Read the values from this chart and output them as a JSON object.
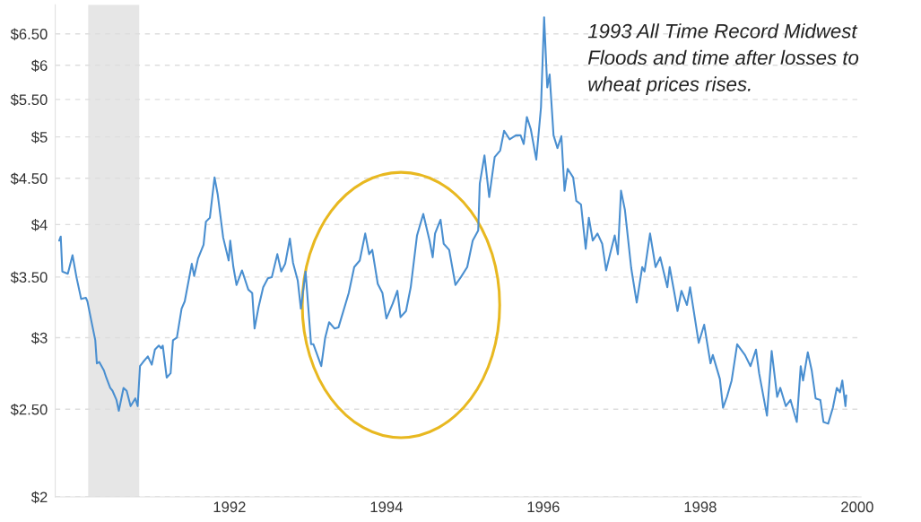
{
  "chart_data": {
    "type": "line",
    "x": [
      1989.83,
      1989.85,
      1989.87,
      1989.94,
      1990.0,
      1990.05,
      1990.11,
      1990.17,
      1990.19,
      1990.24,
      1990.29,
      1990.31,
      1990.34,
      1990.4,
      1990.43,
      1990.48,
      1990.51,
      1990.56,
      1990.59,
      1990.65,
      1990.69,
      1990.74,
      1990.8,
      1990.83,
      1990.86,
      1990.9,
      1990.96,
      1991.01,
      1991.05,
      1991.1,
      1991.13,
      1991.15,
      1991.2,
      1991.25,
      1991.28,
      1991.33,
      1991.39,
      1991.43,
      1991.52,
      1991.55,
      1991.6,
      1991.67,
      1991.7,
      1991.75,
      1991.81,
      1991.85,
      1991.92,
      1991.99,
      1992.01,
      1992.05,
      1992.09,
      1992.16,
      1992.24,
      1992.29,
      1992.32,
      1992.37,
      1992.43,
      1992.49,
      1992.54,
      1992.61,
      1992.66,
      1992.71,
      1992.77,
      1992.81,
      1992.87,
      1992.91,
      1992.97,
      1993.04,
      1993.07,
      1993.17,
      1993.22,
      1993.27,
      1993.34,
      1993.39,
      1993.52,
      1993.59,
      1993.66,
      1993.73,
      1993.78,
      1993.82,
      1993.89,
      1993.95,
      1994.0,
      1994.08,
      1994.14,
      1994.18,
      1994.25,
      1994.31,
      1994.39,
      1994.47,
      1994.55,
      1994.59,
      1994.62,
      1994.69,
      1994.73,
      1994.8,
      1994.88,
      1994.95,
      1995.03,
      1995.1,
      1995.17,
      1995.19,
      1995.25,
      1995.31,
      1995.38,
      1995.45,
      1995.5,
      1995.57,
      1995.65,
      1995.71,
      1995.75,
      1995.79,
      1995.84,
      1995.91,
      1995.97,
      1996.01,
      1996.05,
      1996.08,
      1996.13,
      1996.18,
      1996.23,
      1996.27,
      1996.31,
      1996.38,
      1996.42,
      1996.48,
      1996.54,
      1996.58,
      1996.63,
      1996.69,
      1996.75,
      1996.8,
      1996.85,
      1996.91,
      1996.95,
      1996.99,
      1997.04,
      1997.12,
      1997.19,
      1997.26,
      1997.29,
      1997.36,
      1997.43,
      1997.49,
      1997.58,
      1997.61,
      1997.67,
      1997.71,
      1997.76,
      1997.83,
      1997.87,
      1997.98,
      1998.05,
      1998.13,
      1998.16,
      1998.25,
      1998.29,
      1998.34,
      1998.4,
      1998.47,
      1998.57,
      1998.64,
      1998.71,
      1998.75,
      1998.85,
      1998.91,
      1998.98,
      1999.02,
      1999.09,
      1999.15,
      1999.23,
      1999.28,
      1999.31,
      1999.37,
      1999.42,
      1999.47,
      1999.53,
      1999.57,
      1999.63,
      1999.69,
      1999.74,
      1999.78,
      1999.81,
      1999.85,
      1999.86
    ],
    "series": [
      {
        "color": "#4a8fd0",
        "values": [
          3.84,
          3.88,
          3.55,
          3.53,
          3.7,
          3.5,
          3.31,
          3.32,
          3.29,
          3.13,
          2.98,
          2.81,
          2.82,
          2.76,
          2.71,
          2.64,
          2.62,
          2.56,
          2.49,
          2.64,
          2.62,
          2.52,
          2.57,
          2.52,
          2.79,
          2.82,
          2.86,
          2.8,
          2.91,
          2.94,
          2.92,
          2.94,
          2.71,
          2.74,
          2.98,
          3.0,
          3.23,
          3.29,
          3.62,
          3.51,
          3.67,
          3.8,
          4.03,
          4.07,
          4.51,
          4.32,
          3.87,
          3.65,
          3.84,
          3.59,
          3.43,
          3.56,
          3.39,
          3.36,
          3.07,
          3.24,
          3.41,
          3.49,
          3.5,
          3.71,
          3.55,
          3.62,
          3.86,
          3.63,
          3.47,
          3.23,
          3.55,
          2.95,
          2.95,
          2.79,
          3.0,
          3.12,
          3.07,
          3.08,
          3.36,
          3.59,
          3.65,
          3.91,
          3.71,
          3.75,
          3.44,
          3.36,
          3.15,
          3.27,
          3.38,
          3.16,
          3.21,
          3.41,
          3.89,
          4.11,
          3.84,
          3.68,
          3.91,
          4.05,
          3.81,
          3.75,
          3.43,
          3.5,
          3.59,
          3.84,
          3.94,
          4.44,
          4.77,
          4.29,
          4.75,
          4.83,
          5.08,
          4.97,
          5.02,
          5.02,
          4.91,
          5.26,
          5.1,
          4.72,
          5.39,
          6.78,
          5.67,
          5.86,
          5.02,
          4.86,
          5.01,
          4.36,
          4.61,
          4.51,
          4.25,
          4.21,
          3.76,
          4.07,
          3.84,
          3.91,
          3.81,
          3.56,
          3.71,
          3.89,
          3.71,
          4.36,
          4.15,
          3.58,
          3.28,
          3.59,
          3.55,
          3.91,
          3.59,
          3.68,
          3.41,
          3.59,
          3.36,
          3.21,
          3.38,
          3.26,
          3.41,
          2.96,
          3.1,
          2.81,
          2.87,
          2.7,
          2.51,
          2.58,
          2.69,
          2.95,
          2.87,
          2.79,
          2.91,
          2.74,
          2.46,
          2.9,
          2.58,
          2.64,
          2.52,
          2.56,
          2.42,
          2.79,
          2.69,
          2.89,
          2.76,
          2.57,
          2.56,
          2.42,
          2.41,
          2.51,
          2.64,
          2.61,
          2.69,
          2.52,
          2.59
        ]
      }
    ],
    "log": "y",
    "xlim": [
      1989.78,
      2000.05
    ],
    "xticks": [
      1992,
      1994,
      1996,
      1998,
      2000
    ],
    "ylim": [
      2,
      7
    ],
    "yticks": [
      {
        "value": 2,
        "label": "$2"
      },
      {
        "value": 2.5,
        "label": "$2.50"
      },
      {
        "value": 3,
        "label": "$3"
      },
      {
        "value": 3.5,
        "label": "$3.50"
      },
      {
        "value": 4,
        "label": "$4"
      },
      {
        "value": 4.5,
        "label": "$4.50"
      },
      {
        "value": 5,
        "label": "$5"
      },
      {
        "value": 5.5,
        "label": "$5.50"
      },
      {
        "value": 6,
        "label": "$6"
      },
      {
        "value": 6.5,
        "label": "$6.50"
      }
    ],
    "grid": "y",
    "line_style": "solid",
    "bands": [
      {
        "axis": "x",
        "from": 1990.2,
        "to": 1990.85,
        "color": "#e6e6e6"
      }
    ],
    "annotations": [
      "1993 All Time Record Midwest\nFloods and time after losses to\nwheat prices rises."
    ]
  }
}
